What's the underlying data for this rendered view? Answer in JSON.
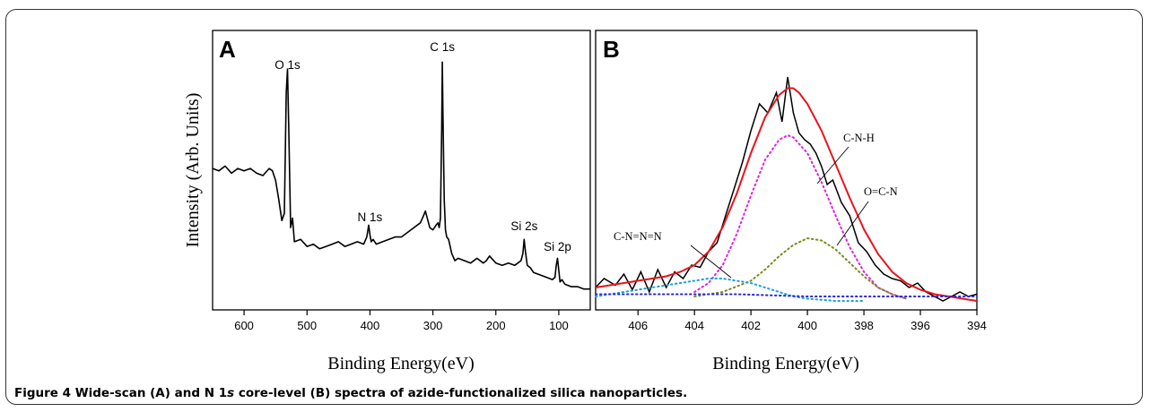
{
  "caption": {
    "figure_label": "Figure 4",
    "text_before_italic": " Wide-scan (A) and N 1",
    "italic": "s",
    "text_after_italic": " core-level (B) spectra of azide-functionalized silica nanoparticles."
  },
  "chart_data": [
    {
      "type": "line",
      "panel_label": "A",
      "xlabel": "Binding Energy(eV)",
      "ylabel": "Intensity (Arb. Units)",
      "xlim": [
        650,
        50
      ],
      "x_reversed": true,
      "ylim": [
        0,
        100
      ],
      "x_ticks": [
        "600",
        "500",
        "400",
        "300",
        "200",
        "100"
      ],
      "x_tick_values": [
        600,
        500,
        400,
        300,
        200,
        100
      ],
      "y_ticks_labeled": false,
      "series": [
        {
          "color": "#000000",
          "x": [
            650,
            640,
            630,
            620,
            610,
            600,
            590,
            580,
            570,
            560,
            555,
            550,
            545,
            540,
            536,
            533,
            531,
            529,
            526,
            523,
            520,
            510,
            500,
            490,
            480,
            470,
            460,
            450,
            440,
            430,
            420,
            410,
            405,
            402,
            400,
            398,
            395,
            390,
            380,
            370,
            360,
            350,
            340,
            330,
            320,
            315,
            312,
            310,
            305,
            300,
            295,
            292,
            290,
            288,
            286,
            285,
            284,
            282,
            280,
            278,
            275,
            270,
            265,
            260,
            250,
            240,
            230,
            220,
            215,
            210,
            200,
            190,
            180,
            170,
            160,
            157,
            155,
            153,
            150,
            145,
            140,
            130,
            120,
            110,
            106,
            104,
            102,
            100,
            98,
            95,
            90,
            80,
            70,
            60,
            50
          ],
          "y": [
            53,
            52,
            54,
            51,
            53,
            52,
            53,
            51,
            50,
            53,
            52,
            48,
            40,
            31,
            34,
            85,
            95,
            70,
            28,
            32,
            22,
            23,
            20,
            21,
            19,
            20,
            21,
            22,
            20,
            21,
            22,
            21,
            24,
            29,
            25,
            22,
            23,
            21,
            22,
            23,
            24,
            24,
            26,
            28,
            30,
            33,
            35,
            33,
            28,
            27,
            29,
            30,
            28,
            32,
            70,
            98,
            76,
            40,
            27,
            24,
            23,
            17,
            14,
            15,
            14,
            13,
            15,
            13,
            14,
            16,
            13,
            12,
            13,
            12,
            14,
            17,
            23,
            18,
            12,
            11,
            9,
            8,
            7,
            6,
            7,
            12,
            15,
            10,
            5,
            6,
            4,
            3,
            3,
            2,
            2
          ]
        }
      ],
      "annotations": [
        {
          "text": "O 1s",
          "x": 531
        },
        {
          "text": "N 1s",
          "x": 400
        },
        {
          "text": "C 1s",
          "x": 285
        },
        {
          "text": "Si 2s",
          "x": 155
        },
        {
          "text": "Si 2p",
          "x": 102
        }
      ]
    },
    {
      "type": "line",
      "panel_label": "B",
      "xlabel": "Binding Energy(eV)",
      "xlim": [
        407.5,
        394
      ],
      "x_reversed": true,
      "ylim": [
        0,
        100
      ],
      "x_ticks": [
        "406",
        "404",
        "402",
        "400",
        "398",
        "396",
        "394"
      ],
      "x_tick_values": [
        406,
        404,
        402,
        400,
        398,
        396,
        394
      ],
      "y_ticks_labeled": false,
      "series": [
        {
          "style": "raw",
          "color": "#000000",
          "x": [
            407.5,
            407.2,
            406.8,
            406.5,
            406.2,
            405.9,
            405.6,
            405.3,
            405.0,
            404.7,
            404.4,
            404.1,
            403.8,
            403.5,
            403.2,
            402.9,
            402.6,
            402.3,
            402.0,
            401.7,
            401.4,
            401.1,
            400.9,
            400.7,
            400.5,
            400.3,
            400.1,
            399.9,
            399.7,
            399.5,
            399.3,
            399.1,
            398.8,
            398.5,
            398.2,
            397.9,
            397.6,
            397.3,
            397.0,
            396.7,
            396.4,
            396.1,
            395.8,
            395.5,
            395.2,
            394.9,
            394.6,
            394.3,
            394.0
          ],
          "y": [
            6,
            10,
            7,
            12,
            5,
            13,
            4,
            14,
            6,
            13,
            10,
            16,
            15,
            22,
            26,
            38,
            50,
            62,
            76,
            88,
            84,
            93,
            80,
            100,
            84,
            75,
            72,
            70,
            66,
            60,
            52,
            54,
            44,
            38,
            26,
            22,
            16,
            12,
            10,
            9,
            6,
            8,
            4,
            2,
            0,
            2,
            4,
            2,
            3
          ]
        },
        {
          "style": "envelope",
          "color": "#e8141c",
          "x": [
            407.5,
            407.0,
            406.5,
            406.0,
            405.5,
            405.0,
            404.5,
            404.0,
            403.5,
            403.0,
            402.5,
            402.0,
            401.5,
            401.0,
            400.7,
            400.5,
            400.3,
            400.0,
            399.5,
            399.0,
            398.5,
            398.0,
            397.5,
            397.0,
            396.5,
            396.0,
            395.5,
            395.0,
            394.5,
            394.0
          ],
          "y": [
            6,
            7,
            8,
            9,
            10,
            11,
            13,
            16,
            22,
            33,
            48,
            66,
            82,
            92,
            95,
            95,
            93,
            88,
            76,
            61,
            46,
            32,
            21,
            13,
            8,
            5,
            3,
            2,
            1,
            0
          ]
        },
        {
          "style": "dotted",
          "color": "#e020e0",
          "name": "C-N-H",
          "x": [
            404.0,
            403.5,
            403.0,
            402.5,
            402.0,
            401.5,
            401.0,
            400.7,
            400.5,
            400.0,
            399.5,
            399.0,
            398.5,
            398.0,
            397.5,
            397.0,
            396.5
          ],
          "y": [
            4,
            8,
            16,
            30,
            47,
            63,
            72,
            74,
            73,
            66,
            53,
            38,
            24,
            13,
            6,
            3,
            1
          ]
        },
        {
          "style": "dotted",
          "color": "#7a8a1a",
          "name": "O=C-N",
          "x": [
            404.0,
            403.0,
            402.0,
            401.5,
            401.0,
            400.5,
            400.0,
            399.5,
            399.0,
            398.5,
            398.0,
            397.5,
            397.0,
            396.5
          ],
          "y": [
            2,
            4,
            9,
            14,
            20,
            25,
            28,
            27,
            23,
            17,
            11,
            6,
            3,
            1
          ]
        },
        {
          "style": "dotted",
          "color": "#1f9fd6",
          "name": "C-N=N=N",
          "x": [
            407.5,
            406.5,
            405.5,
            405.0,
            404.5,
            404.0,
            403.5,
            403.0,
            402.5,
            402.0,
            401.5,
            401.0,
            400.5,
            400.0,
            399.0,
            398.0
          ],
          "y": [
            2,
            4,
            6,
            7,
            8,
            9,
            10,
            10,
            9,
            8,
            6,
            4,
            2,
            1,
            0,
            0
          ]
        },
        {
          "style": "dotted",
          "color": "#2a2ad8",
          "x": [
            407.5,
            405.0,
            402.5,
            400.0,
            397.5,
            395.0,
            394.0
          ],
          "y": [
            3,
            3,
            3,
            2,
            2,
            2,
            2
          ]
        }
      ],
      "annotations": [
        {
          "text": "C-N-H",
          "points_to_x": 400.7
        },
        {
          "text": "O=C-N",
          "points_to_x": 400.0
        },
        {
          "text": "C-N=N=N",
          "points_to_x": 403.0
        }
      ]
    }
  ]
}
